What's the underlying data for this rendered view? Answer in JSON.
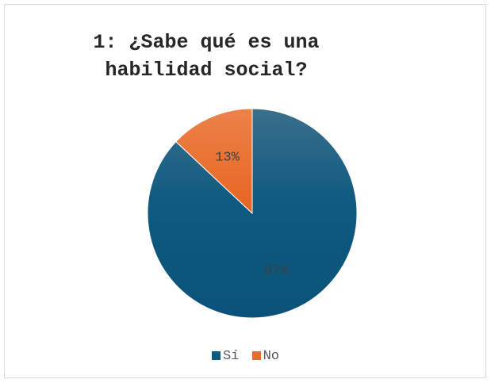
{
  "chart_data": {
    "type": "pie",
    "title_lines": [
      "1: ¿Sabe qué es una",
      "habilidad social?"
    ],
    "categories": [
      "Sí",
      "No"
    ],
    "values": [
      87,
      13
    ],
    "data_labels": [
      "87%",
      "13%"
    ],
    "colors": [
      "#0e5a80",
      "#ea6b28"
    ],
    "legend_position": "bottom"
  }
}
